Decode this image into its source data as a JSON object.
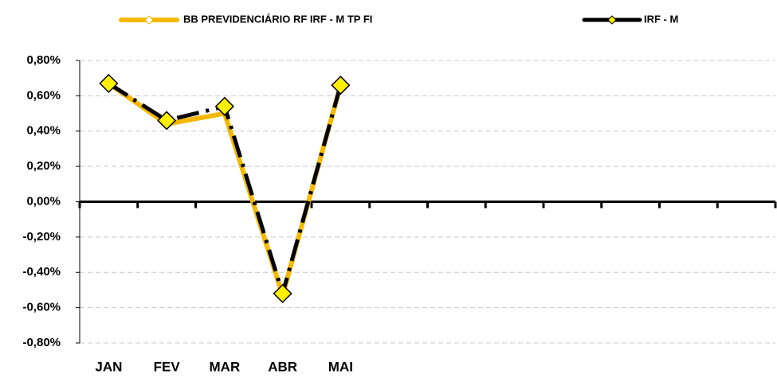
{
  "chart_data": {
    "type": "line",
    "categories": [
      "JAN",
      "FEV",
      "MAR",
      "ABR",
      "MAI",
      null,
      null,
      null,
      null,
      null,
      null,
      null
    ],
    "series": [
      {
        "name": "BB PREVIDENCIÁRIO RF IRF - M TP FI",
        "color": "#f5b800",
        "markers": false,
        "values": [
          0.67,
          0.44,
          0.5,
          -0.53,
          0.66,
          null,
          null,
          null,
          null,
          null,
          null,
          null
        ]
      },
      {
        "name": "IRF - M",
        "color": "#000000",
        "marker_color": "#ffef00",
        "markers": true,
        "values": [
          0.67,
          0.46,
          0.54,
          -0.52,
          0.66,
          null,
          null,
          null,
          null,
          null,
          null,
          null
        ]
      }
    ],
    "ylim": [
      -0.8,
      0.8
    ],
    "yticks": [
      {
        "value": -0.8,
        "label": "-0,80%"
      },
      {
        "value": -0.6,
        "label": "-0,60%"
      },
      {
        "value": -0.4,
        "label": "-0,40%"
      },
      {
        "value": -0.2,
        "label": "-0,20%"
      },
      {
        "value": 0,
        "label": "0,00%"
      },
      {
        "value": 0.2,
        "label": "0,20%"
      },
      {
        "value": 0.4,
        "label": "0,40%"
      },
      {
        "value": 0.6,
        "label": "0,60%"
      },
      {
        "value": 0.8,
        "label": "0,80%"
      }
    ],
    "grid": true,
    "legend": "top"
  }
}
